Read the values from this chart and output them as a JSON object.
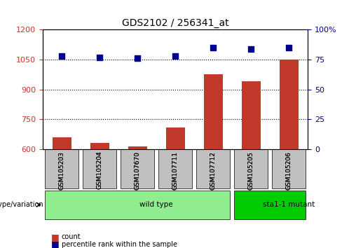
{
  "title": "GDS2102 / 256341_at",
  "samples": [
    "GSM105203",
    "GSM105204",
    "GSM107670",
    "GSM107711",
    "GSM107712",
    "GSM105205",
    "GSM105206"
  ],
  "counts": [
    660,
    630,
    615,
    710,
    975,
    940,
    1050
  ],
  "percentile_ranks": [
    78,
    77,
    76,
    78,
    85,
    84,
    85
  ],
  "ylim_left": [
    600,
    1200
  ],
  "ylim_right": [
    0,
    100
  ],
  "yticks_left": [
    600,
    750,
    900,
    1050,
    1200
  ],
  "yticks_right": [
    0,
    25,
    50,
    75,
    100
  ],
  "bar_color": "#c0392b",
  "dot_color": "#00008b",
  "grid_color": "#000000",
  "background_color": "#ffffff",
  "plot_bg_color": "#ffffff",
  "genotype_groups": [
    {
      "label": "wild type",
      "start": 0,
      "end": 5,
      "color": "#90ee90"
    },
    {
      "label": "sta1-1 mutant",
      "start": 5,
      "end": 7,
      "color": "#00cc00"
    }
  ],
  "xlabel_area_color": "#c0c0c0",
  "legend_count_color": "#c0392b",
  "legend_pct_color": "#00008b"
}
